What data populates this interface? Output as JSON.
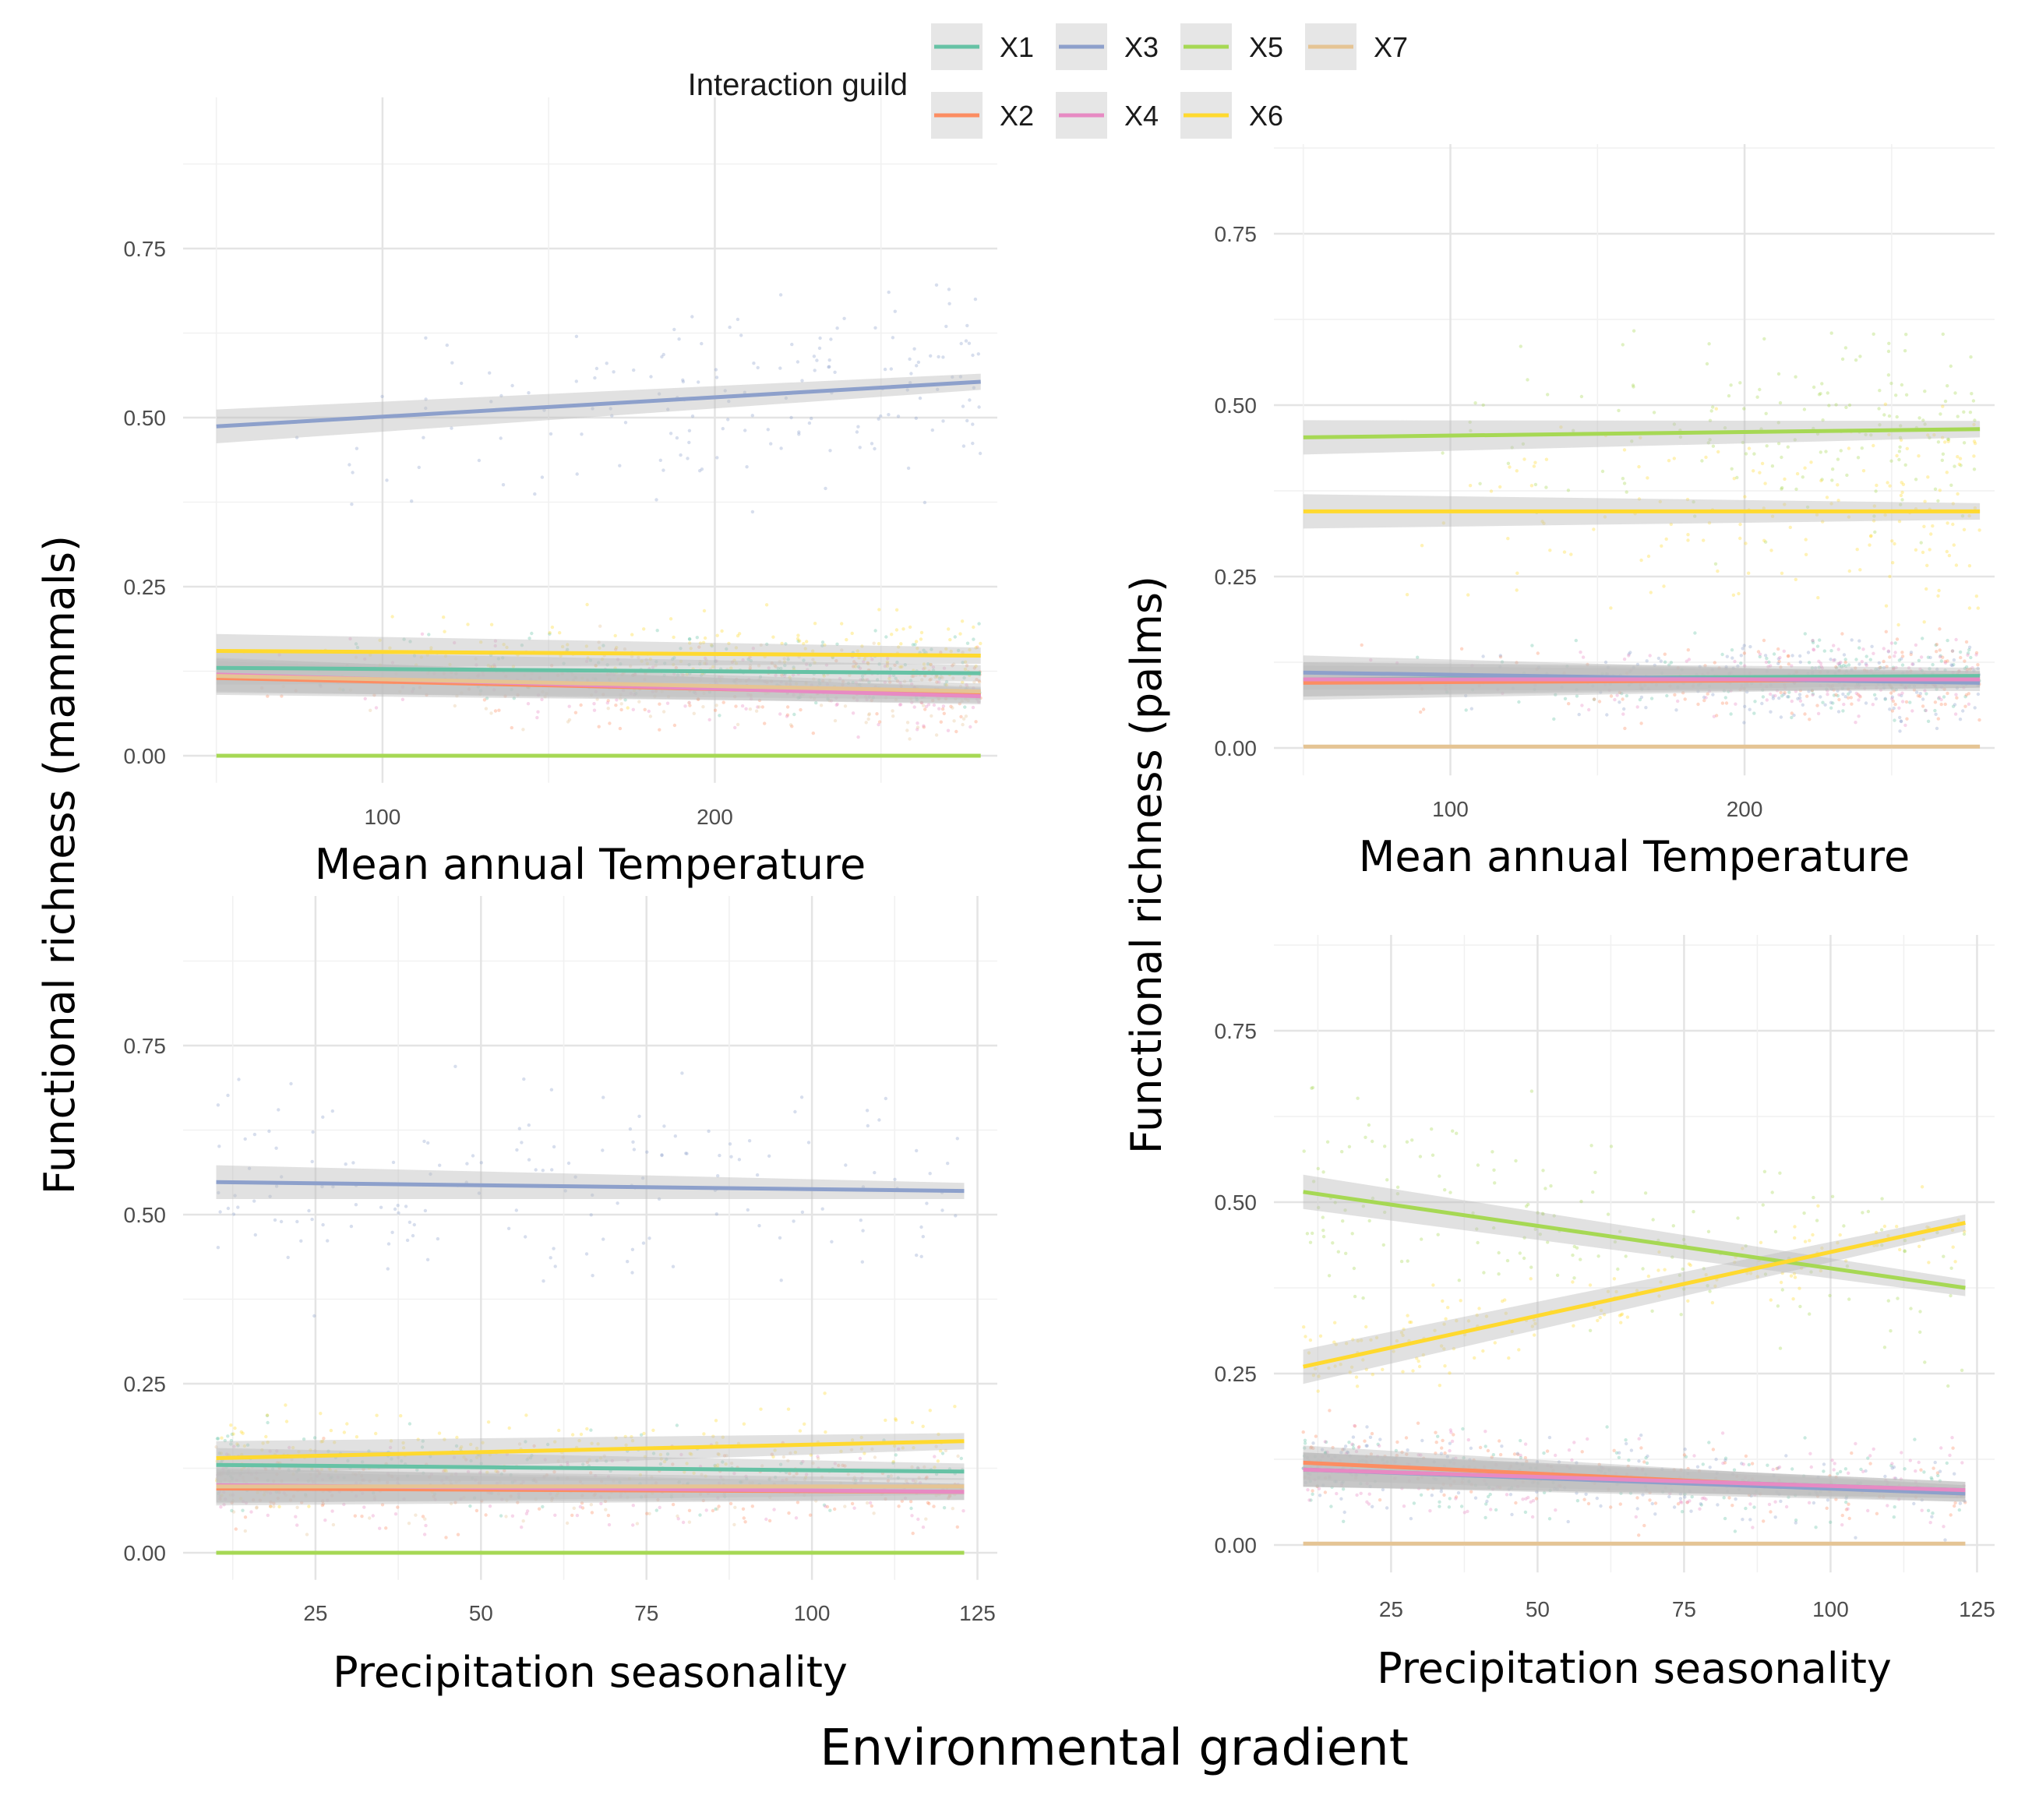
{
  "figure": {
    "shared_xlabel": "Environmental gradient",
    "ylabel_left": "Functional richness (mammals)",
    "ylabel_right": "Functional richness (palms)"
  },
  "legend": {
    "title": "Interaction guild",
    "placement": "top-center",
    "items": [
      {
        "label": "X1",
        "color": "#66c2a5"
      },
      {
        "label": "X2",
        "color": "#fc8d62"
      },
      {
        "label": "X3",
        "color": "#8da0cb"
      },
      {
        "label": "X4",
        "color": "#e78ac3"
      },
      {
        "label": "X5",
        "color": "#a6d854"
      },
      {
        "label": "X6",
        "color": "#ffd92f"
      },
      {
        "label": "X7",
        "color": "#e5c494"
      }
    ]
  },
  "chart_data": [
    {
      "type": "scatter",
      "panel": "mammals-temperature",
      "xlabel": "Mean annual Temperature",
      "xlim": [
        40,
        285
      ],
      "ylim": [
        -0.04,
        0.93
      ],
      "xticks": [
        100,
        200
      ],
      "yticks": [
        0.0,
        0.25,
        0.5,
        0.75
      ],
      "grid": true,
      "trend_lines": [
        {
          "name": "X1",
          "x": [
            50,
            280
          ],
          "y": [
            0.13,
            0.122
          ]
        },
        {
          "name": "X2",
          "x": [
            50,
            280
          ],
          "y": [
            0.115,
            0.09
          ]
        },
        {
          "name": "X3",
          "x": [
            50,
            280
          ],
          "y": [
            0.487,
            0.553
          ]
        },
        {
          "name": "X4",
          "x": [
            50,
            280
          ],
          "y": [
            0.12,
            0.088
          ]
        },
        {
          "name": "X5",
          "x": [
            50,
            280
          ],
          "y": [
            0.0,
            0.0
          ]
        },
        {
          "name": "X6",
          "x": [
            50,
            280
          ],
          "y": [
            0.155,
            0.148
          ]
        },
        {
          "name": "X7",
          "x": [
            50,
            280
          ],
          "y": [
            0.118,
            0.095
          ]
        }
      ]
    },
    {
      "type": "scatter",
      "panel": "palms-temperature",
      "xlabel": "Mean annual Temperature",
      "xlim": [
        40,
        285
      ],
      "ylim": [
        -0.04,
        0.93
      ],
      "xticks": [
        100,
        200
      ],
      "yticks": [
        0.0,
        0.25,
        0.5,
        0.75
      ],
      "grid": true,
      "trend_lines": [
        {
          "name": "X1",
          "x": [
            50,
            280
          ],
          "y": [
            0.1,
            0.105
          ]
        },
        {
          "name": "X2",
          "x": [
            50,
            280
          ],
          "y": [
            0.095,
            0.1
          ]
        },
        {
          "name": "X3",
          "x": [
            50,
            280
          ],
          "y": [
            0.11,
            0.095
          ]
        },
        {
          "name": "X4",
          "x": [
            50,
            280
          ],
          "y": [
            0.1,
            0.1
          ]
        },
        {
          "name": "X5",
          "x": [
            50,
            280
          ],
          "y": [
            0.453,
            0.465
          ]
        },
        {
          "name": "X6",
          "x": [
            50,
            280
          ],
          "y": [
            0.345,
            0.345
          ]
        },
        {
          "name": "X7",
          "x": [
            50,
            280
          ],
          "y": [
            0.002,
            0.002
          ]
        }
      ]
    },
    {
      "type": "scatter",
      "panel": "mammals-precipitation",
      "xlabel": "Precipitation seasonality",
      "xlim": [
        5,
        128
      ],
      "ylim": [
        -0.04,
        0.93
      ],
      "xticks": [
        25,
        50,
        75,
        100,
        125
      ],
      "yticks": [
        0.0,
        0.25,
        0.5,
        0.75
      ],
      "grid": true,
      "trend_lines": [
        {
          "name": "X1",
          "x": [
            10,
            123
          ],
          "y": [
            0.13,
            0.12
          ]
        },
        {
          "name": "X2",
          "x": [
            10,
            123
          ],
          "y": [
            0.095,
            0.09
          ]
        },
        {
          "name": "X3",
          "x": [
            10,
            123
          ],
          "y": [
            0.548,
            0.535
          ]
        },
        {
          "name": "X4",
          "x": [
            10,
            123
          ],
          "y": [
            0.1,
            0.09
          ]
        },
        {
          "name": "X5",
          "x": [
            10,
            123
          ],
          "y": [
            0.0,
            0.0
          ]
        },
        {
          "name": "X6",
          "x": [
            10,
            123
          ],
          "y": [
            0.14,
            0.165
          ]
        },
        {
          "name": "X7",
          "x": [
            10,
            123
          ],
          "y": [
            0.098,
            0.098
          ]
        }
      ]
    },
    {
      "type": "scatter",
      "panel": "palms-precipitation",
      "xlabel": "Precipitation seasonality",
      "xlim": [
        5,
        128
      ],
      "ylim": [
        -0.04,
        0.93
      ],
      "xticks": [
        25,
        50,
        75,
        100,
        125
      ],
      "yticks": [
        0.0,
        0.25,
        0.5,
        0.75
      ],
      "grid": true,
      "trend_lines": [
        {
          "name": "X1",
          "x": [
            10,
            123
          ],
          "y": [
            0.11,
            0.08
          ]
        },
        {
          "name": "X2",
          "x": [
            10,
            123
          ],
          "y": [
            0.12,
            0.075
          ]
        },
        {
          "name": "X3",
          "x": [
            10,
            123
          ],
          "y": [
            0.11,
            0.075
          ]
        },
        {
          "name": "X4",
          "x": [
            10,
            123
          ],
          "y": [
            0.11,
            0.08
          ]
        },
        {
          "name": "X5",
          "x": [
            10,
            123
          ],
          "y": [
            0.515,
            0.375
          ]
        },
        {
          "name": "X6",
          "x": [
            10,
            123
          ],
          "y": [
            0.26,
            0.47
          ]
        },
        {
          "name": "X7",
          "x": [
            10,
            123
          ],
          "y": [
            0.002,
            0.002
          ]
        }
      ]
    }
  ]
}
